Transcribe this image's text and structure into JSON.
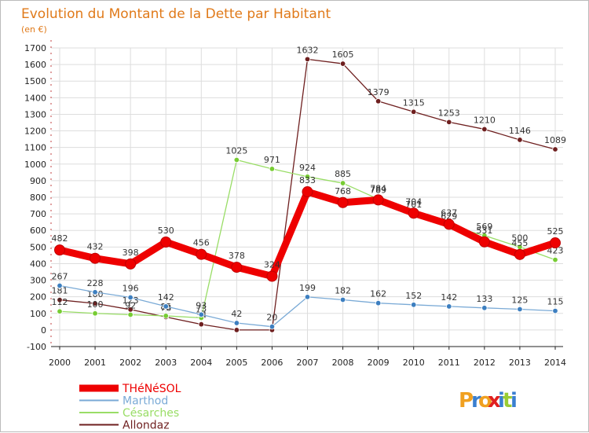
{
  "chart_data": {
    "type": "line",
    "title": "Evolution du Montant de la Dette par Habitant",
    "subtitle": "(en €)",
    "ylim": [
      -100,
      1700
    ],
    "yticks": [
      -100,
      0,
      100,
      200,
      300,
      400,
      500,
      600,
      700,
      800,
      900,
      1000,
      1100,
      1200,
      1300,
      1400,
      1500,
      1600,
      1700
    ],
    "ytick_labels": [
      "-100",
      "0",
      "100",
      "200",
      "300",
      "400",
      "500",
      "600",
      "700",
      "800",
      "900",
      "1000",
      "1100",
      "1200",
      "1300",
      "1400",
      "1500",
      "1600",
      "1700"
    ],
    "x": [
      "2000",
      "2001",
      "2002",
      "2003",
      "2004",
      "2005",
      "2006",
      "2007",
      "2008",
      "2009",
      "2010",
      "2011",
      "2012",
      "2013",
      "2014"
    ],
    "grid": true,
    "legend_position": "bottom-left",
    "series": [
      {
        "name": "Allondaz",
        "color": "#6e1f1f",
        "point_color": "#6e1f1f",
        "values": [
          181,
          160,
          123,
          78,
          34,
          0,
          0,
          1632,
          1605,
          1379,
          1315,
          1253,
          1210,
          1146,
          1089
        ],
        "labels": [
          "181",
          "160",
          "123",
          "78",
          "34",
          "",
          "",
          "1632",
          "1605",
          "1379",
          "1315",
          "1253",
          "1210",
          "1146",
          "1089"
        ]
      },
      {
        "name": "Césarches",
        "color": "#99dd66",
        "point_color": "#77cc33",
        "values": [
          112,
          100,
          92,
          85,
          73,
          1025,
          971,
          924,
          885,
          789,
          701,
          629,
          569,
          500,
          423
        ],
        "labels": [
          "112",
          "100",
          "92",
          "85",
          "73",
          "1025",
          "971",
          "924",
          "885",
          "789",
          "701",
          "629",
          "569",
          "500",
          "423"
        ]
      },
      {
        "name": "Marthod",
        "color": "#7aaad6",
        "point_color": "#3d7fc0",
        "values": [
          267,
          228,
          196,
          142,
          93,
          42,
          20,
          199,
          182,
          162,
          152,
          142,
          133,
          125,
          115
        ],
        "labels": [
          "267",
          "228",
          "196",
          "142",
          "93",
          "42",
          "20",
          "199",
          "182",
          "162",
          "152",
          "142",
          "133",
          "125",
          "115"
        ]
      },
      {
        "name": "THéNéSOL",
        "color": "#ee0000",
        "point_color": "#ee0000",
        "values": [
          482,
          432,
          398,
          530,
          456,
          378,
          324,
          833,
          768,
          784,
          704,
          637,
          531,
          455,
          525
        ],
        "labels": [
          "482",
          "432",
          "398",
          "530",
          "456",
          "378",
          "324",
          "833",
          "768",
          "784",
          "704",
          "637",
          "531",
          "455",
          "525"
        ]
      }
    ],
    "legend": [
      "THéNéSOL",
      "Marthod",
      "Césarches",
      "Allondaz"
    ]
  },
  "colors": {
    "title": "#e07a1a",
    "grid": "#dddddd",
    "axis": "#222222"
  },
  "brand": {
    "letters": [
      "P",
      "r",
      "o",
      "x",
      "i",
      "t",
      "i"
    ],
    "colors": [
      "#f0a020",
      "#3a7fd0",
      "#f0a020",
      "#e02020",
      "#3a7fd0",
      "#9acc33",
      "#3a7fd0"
    ]
  }
}
